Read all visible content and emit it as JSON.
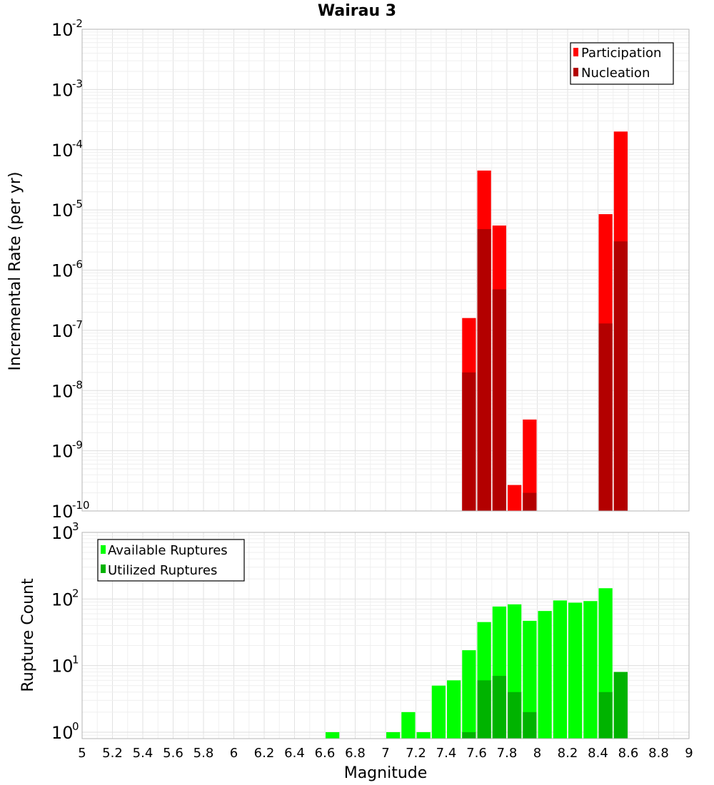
{
  "chart_data": [
    {
      "type": "bar",
      "title": "Wairau 3",
      "xlabel": "",
      "ylabel": "Incremental Rate (per yr)",
      "yscale": "log",
      "ylim": [
        1e-10,
        0.01
      ],
      "xlim": [
        5,
        9
      ],
      "grid": true,
      "legend_position": "top-right",
      "yticks": [
        {
          "base": "10",
          "exp": "-2",
          "value": 0.01
        },
        {
          "base": "10",
          "exp": "-3",
          "value": 0.001
        },
        {
          "base": "10",
          "exp": "-4",
          "value": 0.0001
        },
        {
          "base": "10",
          "exp": "-5",
          "value": 1e-05
        },
        {
          "base": "10",
          "exp": "-6",
          "value": 1e-06
        },
        {
          "base": "10",
          "exp": "-7",
          "value": 1e-07
        },
        {
          "base": "10",
          "exp": "-8",
          "value": 1e-08
        },
        {
          "base": "10",
          "exp": "-9",
          "value": 1e-09
        },
        {
          "base": "10",
          "exp": "-10",
          "value": 1e-10
        }
      ],
      "x": [
        7.55,
        7.65,
        7.75,
        7.85,
        7.95,
        8.45,
        8.55
      ],
      "series": [
        {
          "name": "Participation",
          "color": "#ff0000",
          "values": [
            1.6e-07,
            4.5e-05,
            5.5e-06,
            2.7e-10,
            3.3e-09,
            8.5e-06,
            0.0002
          ]
        },
        {
          "name": "Nucleation",
          "color": "#b30000",
          "values": [
            2e-08,
            4.8e-06,
            4.8e-07,
            null,
            2e-10,
            1.3e-07,
            3e-06
          ]
        }
      ]
    },
    {
      "type": "bar",
      "title": "",
      "xlabel": "Magnitude",
      "ylabel": "Rupture Count",
      "yscale": "log",
      "ylim": [
        0.8,
        1000
      ],
      "xlim": [
        5,
        9
      ],
      "grid": true,
      "legend_position": "top-left",
      "xticks": [
        "5",
        "5.2",
        "5.4",
        "5.6",
        "5.8",
        "6",
        "6.2",
        "6.4",
        "6.6",
        "6.8",
        "7",
        "7.2",
        "7.4",
        "7.6",
        "7.8",
        "8",
        "8.2",
        "8.4",
        "8.6",
        "8.8",
        "9"
      ],
      "yticks": [
        {
          "base": "10",
          "exp": "3",
          "value": 1000
        },
        {
          "base": "10",
          "exp": "2",
          "value": 100
        },
        {
          "base": "10",
          "exp": "1",
          "value": 10
        },
        {
          "base": "10",
          "exp": "0",
          "value": 1
        }
      ],
      "x": [
        6.65,
        7.05,
        7.15,
        7.25,
        7.35,
        7.45,
        7.55,
        7.65,
        7.75,
        7.85,
        7.95,
        8.05,
        8.15,
        8.25,
        8.35,
        8.45,
        8.55
      ],
      "series": [
        {
          "name": "Available Ruptures",
          "color": "#00ff00",
          "values": [
            1,
            1,
            2,
            1,
            5,
            6,
            17,
            45,
            77,
            83,
            47,
            66,
            95,
            88,
            93,
            145,
            8
          ]
        },
        {
          "name": "Utilized Ruptures",
          "color": "#00b300",
          "values": [
            null,
            null,
            null,
            null,
            null,
            null,
            1,
            6,
            7,
            4,
            2,
            null,
            null,
            null,
            null,
            4,
            8
          ]
        }
      ]
    }
  ]
}
